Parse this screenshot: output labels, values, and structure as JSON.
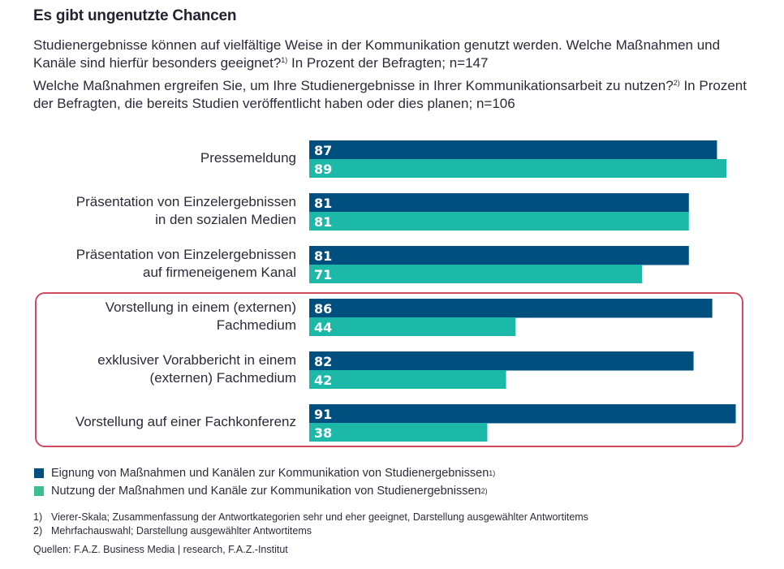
{
  "header": {
    "title": "Es gibt ungenutzte Chancen",
    "question1": "Studienergebnisse können auf vielfältige Weise in der Kommunikation genutzt werden. Welche Maßnahmen und Kanäle sind hierfür besonders geeignet?",
    "question1_sup": "1)",
    "question1_tail": " In Prozent der Befragten; n=147",
    "question2": "Welche Maßnahmen ergreifen Sie, um Ihre Studienergebnisse in Ihrer Kommunikationsarbeit zu nutzen?",
    "question2_sup": "2)",
    "question2_tail": " In Prozent der Befragten, die bereits Studien veröffentlicht haben oder dies planen; n=106"
  },
  "colors": {
    "series1": "#00507f",
    "series2": "#1cb9a8",
    "legend2": "#3dbf92",
    "highlight_frame": "#d24a5e"
  },
  "chart_data": {
    "type": "bar",
    "orientation": "horizontal",
    "title": "Es gibt ungenutzte Chancen",
    "xlabel": "",
    "ylabel": "",
    "xlim": [
      0,
      100
    ],
    "grid": false,
    "categories": [
      "Pressemeldung",
      "Präsentation von Einzelergebnissen in den sozialen Medien",
      "Präsentation von Einzelergebnissen auf firmeneigenem Kanal",
      "Vorstellung in einem (externen) Fachmedium",
      "exklusiver Vorabbericht in einem (externen) Fachmedium",
      "Vorstellung auf einer Fachkonferenz"
    ],
    "category_lines": [
      [
        "Pressemeldung"
      ],
      [
        "Präsentation von Einzelergebnissen",
        "in den sozialen Medien"
      ],
      [
        "Präsentation von Einzelergebnissen",
        "auf firmeneigenem Kanal"
      ],
      [
        "Vorstellung in einem (externen)",
        "Fachmedium"
      ],
      [
        "exklusiver Vorabbericht in einem",
        "(externen) Fachmedium"
      ],
      [
        "Vorstellung auf einer Fachkonferenz"
      ]
    ],
    "series": [
      {
        "name": "Eignung von Maßnahmen und Kanälen zur Kommunikation von Studienergebnissen",
        "footnote": "1)",
        "values": [
          87,
          81,
          81,
          86,
          82,
          91
        ]
      },
      {
        "name": "Nutzung der Maßnahmen und Kanäle zur Kommunikation von Studienergebnissen",
        "footnote": "2)",
        "values": [
          89,
          81,
          71,
          44,
          42,
          38
        ]
      }
    ],
    "highlighted_categories": [
      3,
      4,
      5
    ],
    "legend_position": "bottom-left"
  },
  "footnotes": [
    {
      "num": "1)",
      "text": "Vierer-Skala; Zusammenfassung der Antwortkategorien sehr und eher geeignet, Darstellung ausgewählter Antwortitems"
    },
    {
      "num": "2)",
      "text": "Mehrfachauswahl; Darstellung ausgewählter Antwortitems"
    }
  ],
  "source": "Quellen: F.A.Z. Business Media | research, F.A.Z.-Institut"
}
